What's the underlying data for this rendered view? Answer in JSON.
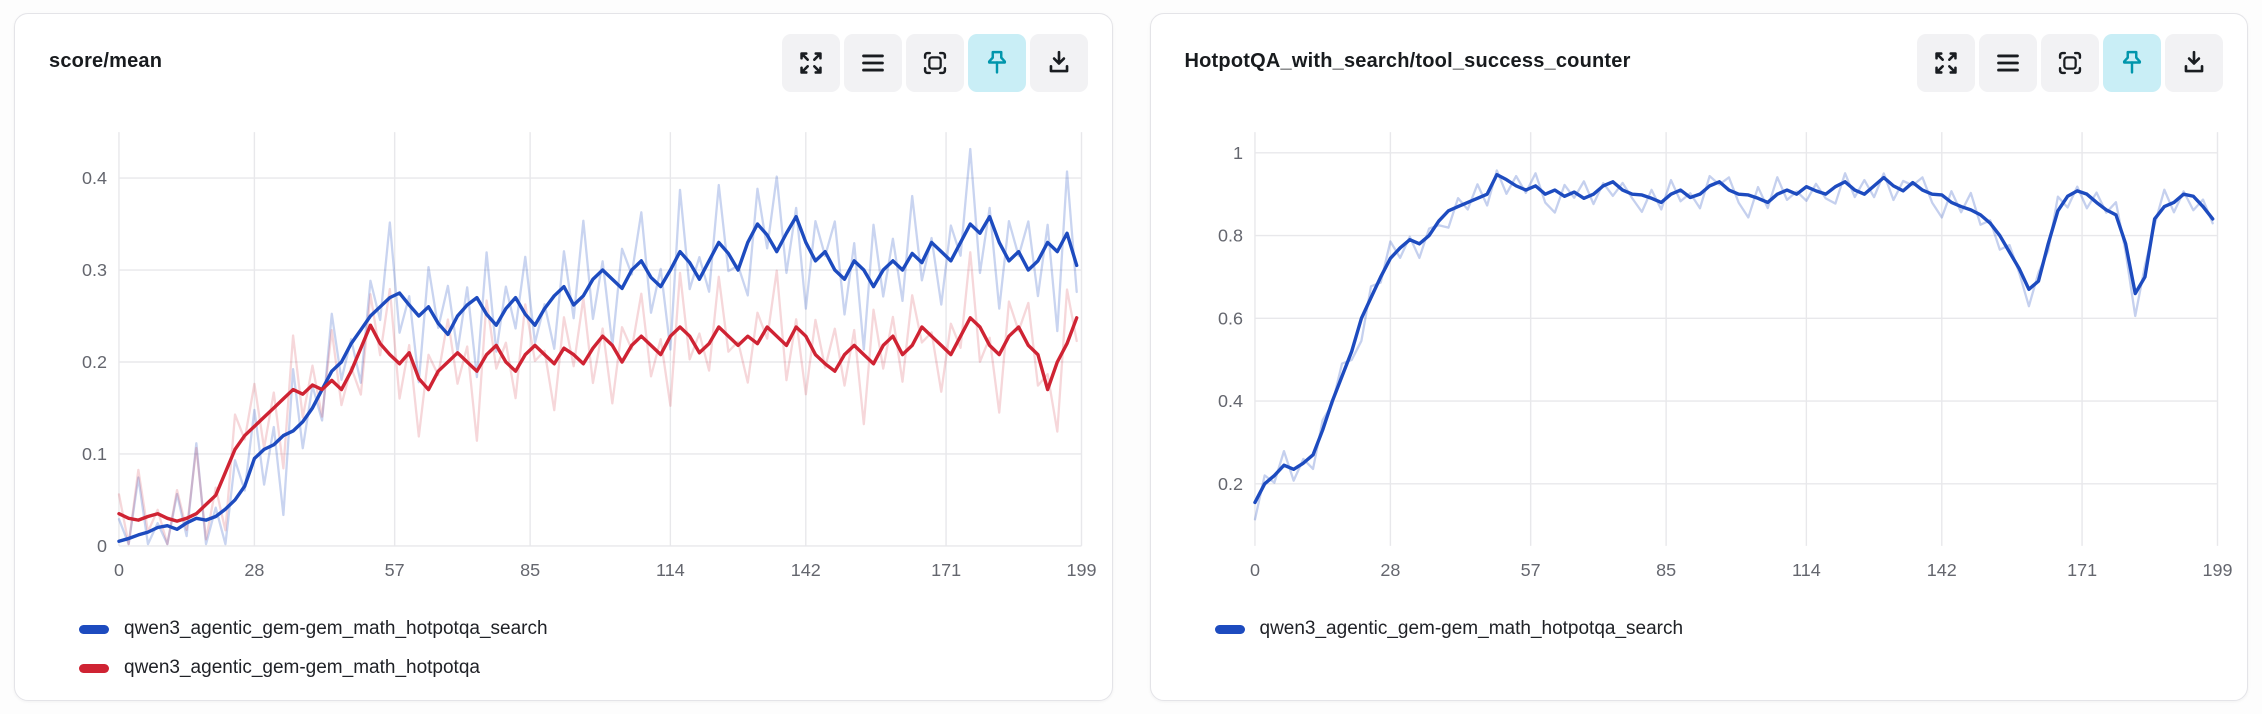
{
  "toolbar": {
    "buttons": [
      "expand-icon",
      "menu-icon",
      "focus-mode-icon",
      "pin-icon",
      "download-icon"
    ],
    "active_button": "pin-icon"
  },
  "colors": {
    "pin_active_bg": "#c9eef6",
    "pin_active_icon": "#0096ac",
    "toolbar_icon": "#1a1d21",
    "grid": "#e8e8eb",
    "tick_text": "#64666e",
    "series_blue": "#1d4bbf",
    "series_red": "#cf2333"
  },
  "chart_data": [
    {
      "type": "line",
      "title": "score/mean",
      "xlabel": "",
      "ylabel": "",
      "grid": true,
      "legend_position": "bottom-left",
      "xlim": [
        0,
        199
      ],
      "ylim": [
        0,
        0.45
      ],
      "xticks": [
        0,
        28,
        57,
        85,
        114,
        142,
        171,
        199
      ],
      "yticks": [
        0,
        0.1,
        0.2,
        0.3,
        0.4
      ],
      "x_start": 0,
      "x_step": 2,
      "series": [
        {
          "name": "qwen3_agentic_gem-gem_math_hotpotqa_search",
          "color": "#1d4bbf",
          "values": [
            0.005,
            0.008,
            0.012,
            0.015,
            0.02,
            0.022,
            0.018,
            0.025,
            0.03,
            0.028,
            0.032,
            0.04,
            0.05,
            0.065,
            0.095,
            0.105,
            0.11,
            0.12,
            0.125,
            0.135,
            0.15,
            0.17,
            0.19,
            0.2,
            0.22,
            0.235,
            0.25,
            0.26,
            0.27,
            0.275,
            0.262,
            0.25,
            0.26,
            0.242,
            0.23,
            0.25,
            0.262,
            0.27,
            0.252,
            0.24,
            0.258,
            0.27,
            0.252,
            0.24,
            0.258,
            0.272,
            0.282,
            0.262,
            0.272,
            0.29,
            0.3,
            0.29,
            0.28,
            0.3,
            0.31,
            0.292,
            0.282,
            0.3,
            0.32,
            0.308,
            0.29,
            0.31,
            0.33,
            0.318,
            0.3,
            0.33,
            0.35,
            0.338,
            0.32,
            0.34,
            0.358,
            0.33,
            0.31,
            0.32,
            0.3,
            0.29,
            0.31,
            0.3,
            0.282,
            0.3,
            0.31,
            0.3,
            0.318,
            0.308,
            0.33,
            0.32,
            0.31,
            0.33,
            0.35,
            0.34,
            0.358,
            0.33,
            0.31,
            0.32,
            0.3,
            0.31,
            0.33,
            0.32,
            0.34,
            0.305
          ]
        },
        {
          "name": "qwen3_agentic_gem-gem_math_hotpotqa",
          "color": "#cf2333",
          "values": [
            0.035,
            0.03,
            0.028,
            0.032,
            0.035,
            0.03,
            0.027,
            0.03,
            0.035,
            0.045,
            0.055,
            0.08,
            0.105,
            0.12,
            0.13,
            0.14,
            0.15,
            0.16,
            0.17,
            0.165,
            0.175,
            0.17,
            0.18,
            0.17,
            0.19,
            0.215,
            0.24,
            0.22,
            0.208,
            0.198,
            0.21,
            0.182,
            0.17,
            0.19,
            0.2,
            0.21,
            0.2,
            0.19,
            0.208,
            0.218,
            0.2,
            0.19,
            0.208,
            0.218,
            0.208,
            0.198,
            0.215,
            0.208,
            0.198,
            0.215,
            0.228,
            0.218,
            0.2,
            0.218,
            0.228,
            0.218,
            0.208,
            0.228,
            0.238,
            0.228,
            0.21,
            0.22,
            0.238,
            0.228,
            0.218,
            0.228,
            0.22,
            0.238,
            0.228,
            0.218,
            0.238,
            0.228,
            0.208,
            0.198,
            0.19,
            0.208,
            0.218,
            0.208,
            0.198,
            0.218,
            0.228,
            0.208,
            0.218,
            0.238,
            0.228,
            0.218,
            0.208,
            0.228,
            0.248,
            0.238,
            0.218,
            0.208,
            0.228,
            0.238,
            0.218,
            0.208,
            0.17,
            0.2,
            0.22,
            0.248
          ]
        }
      ],
      "raw_overlay": {
        "amplitudes": [
          0.048,
          0.042
        ],
        "opacities": [
          0.24,
          0.18
        ],
        "pattern": [
          0.5,
          -0.7,
          1.3,
          -0.4,
          0.1,
          -1.2,
          0.8,
          -0.3,
          1.7,
          -0.9,
          0.2,
          -1.5,
          0.9,
          -0.1,
          1.1,
          -0.8,
          0.4,
          -1.8,
          1.4,
          -0.6
        ]
      }
    },
    {
      "type": "line",
      "title": "HotpotQA_with_search/tool_success_counter",
      "xlabel": "",
      "ylabel": "",
      "grid": true,
      "legend_position": "bottom-left",
      "xlim": [
        0,
        199
      ],
      "ylim": [
        0.05,
        1.05
      ],
      "xticks": [
        0,
        28,
        57,
        85,
        114,
        142,
        171,
        199
      ],
      "yticks": [
        0.2,
        0.4,
        0.6,
        0.8,
        1
      ],
      "x_start": 0,
      "x_step": 2,
      "series": [
        {
          "name": "qwen3_agentic_gem-gem_math_hotpotqa_search",
          "color": "#1d4bbf",
          "values": [
            0.155,
            0.2,
            0.22,
            0.245,
            0.235,
            0.25,
            0.27,
            0.33,
            0.4,
            0.46,
            0.52,
            0.6,
            0.65,
            0.7,
            0.745,
            0.77,
            0.79,
            0.78,
            0.8,
            0.835,
            0.86,
            0.87,
            0.88,
            0.89,
            0.9,
            0.947,
            0.935,
            0.92,
            0.91,
            0.92,
            0.9,
            0.91,
            0.895,
            0.905,
            0.89,
            0.9,
            0.92,
            0.93,
            0.91,
            0.9,
            0.898,
            0.89,
            0.88,
            0.9,
            0.91,
            0.892,
            0.9,
            0.92,
            0.93,
            0.91,
            0.9,
            0.898,
            0.89,
            0.88,
            0.9,
            0.91,
            0.9,
            0.918,
            0.908,
            0.9,
            0.918,
            0.93,
            0.91,
            0.9,
            0.92,
            0.94,
            0.92,
            0.908,
            0.928,
            0.91,
            0.9,
            0.898,
            0.88,
            0.87,
            0.862,
            0.85,
            0.83,
            0.8,
            0.76,
            0.72,
            0.67,
            0.69,
            0.78,
            0.86,
            0.895,
            0.908,
            0.9,
            0.88,
            0.862,
            0.85,
            0.78,
            0.66,
            0.7,
            0.84,
            0.87,
            0.88,
            0.9,
            0.895,
            0.87,
            0.84
          ]
        }
      ],
      "raw_overlay": {
        "amplitudes": [
          0.034
        ],
        "opacities": [
          0.26
        ],
        "pattern": [
          -1.2,
          0.6,
          -0.5,
          1.0,
          -0.8,
          0.3,
          -1.0,
          0.7,
          -0.2,
          0.9,
          -0.6,
          -1.6,
          0.8,
          -0.4,
          1.2,
          -0.7,
          0.2,
          -1.0,
          0.5,
          -0.3
        ]
      }
    }
  ]
}
